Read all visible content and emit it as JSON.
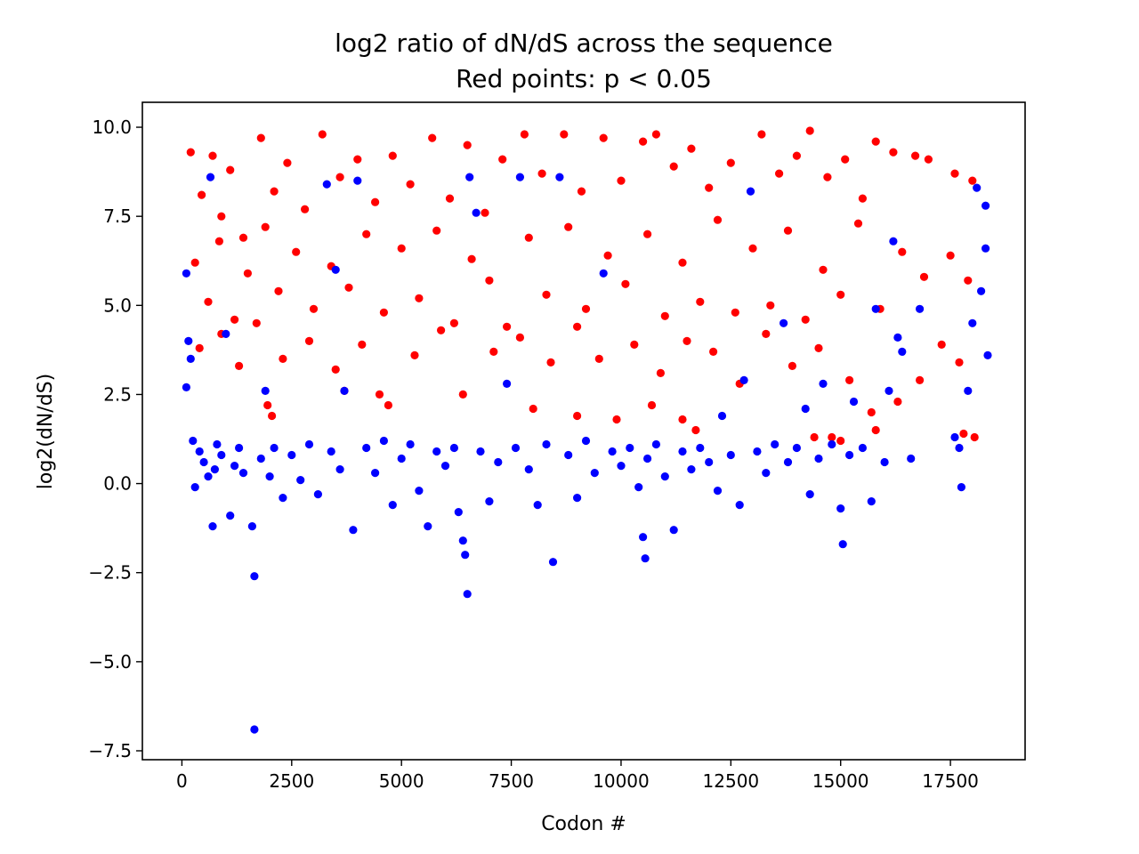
{
  "chart_data": {
    "type": "scatter",
    "title": "log2 ratio of dN/dS across the sequence",
    "subtitle": "Red points: p < 0.05",
    "xlabel": "Codon #",
    "ylabel": "log2(dN/dS)",
    "xlim": [
      -900,
      19200
    ],
    "ylim": [
      -7.75,
      10.7
    ],
    "xticks": [
      0,
      2500,
      5000,
      7500,
      10000,
      12500,
      15000,
      17500
    ],
    "xtick_labels": [
      "0",
      "2500",
      "5000",
      "7500",
      "10000",
      "12500",
      "15000",
      "17500"
    ],
    "yticks": [
      -7.5,
      -5.0,
      -2.5,
      0.0,
      2.5,
      5.0,
      7.5,
      10.0
    ],
    "ytick_labels": [
      "−7.5",
      "−5.0",
      "−2.5",
      "0.0",
      "2.5",
      "5.0",
      "7.5",
      "10.0"
    ],
    "grid": false,
    "series": [
      {
        "color": "#ff0000",
        "condition": "p < 0.05",
        "points": [
          [
            200,
            9.3
          ],
          [
            450,
            8.1
          ],
          [
            700,
            9.2
          ],
          [
            900,
            7.5
          ],
          [
            1100,
            8.8
          ],
          [
            1400,
            6.9
          ],
          [
            1800,
            9.7
          ],
          [
            2100,
            8.2
          ],
          [
            2400,
            9.0
          ],
          [
            2800,
            7.7
          ],
          [
            3200,
            9.8
          ],
          [
            3600,
            8.6
          ],
          [
            4000,
            9.1
          ],
          [
            4400,
            7.9
          ],
          [
            4800,
            9.2
          ],
          [
            5200,
            8.4
          ],
          [
            5700,
            9.7
          ],
          [
            6100,
            8.0
          ],
          [
            6500,
            9.5
          ],
          [
            6900,
            7.6
          ],
          [
            7300,
            9.1
          ],
          [
            7800,
            9.8
          ],
          [
            8200,
            8.7
          ],
          [
            8700,
            9.8
          ],
          [
            9100,
            8.2
          ],
          [
            9600,
            9.7
          ],
          [
            10000,
            8.5
          ],
          [
            10500,
            9.6
          ],
          [
            10800,
            9.8
          ],
          [
            11200,
            8.9
          ],
          [
            11600,
            9.4
          ],
          [
            12000,
            8.3
          ],
          [
            12500,
            9.0
          ],
          [
            13200,
            9.8
          ],
          [
            13600,
            8.7
          ],
          [
            14000,
            9.2
          ],
          [
            14300,
            9.9
          ],
          [
            14700,
            8.6
          ],
          [
            15100,
            9.1
          ],
          [
            15500,
            8.0
          ],
          [
            15800,
            9.6
          ],
          [
            16200,
            9.3
          ],
          [
            16700,
            9.2
          ],
          [
            17000,
            9.1
          ],
          [
            17600,
            8.7
          ],
          [
            18000,
            8.5
          ],
          [
            300,
            6.2
          ],
          [
            600,
            5.1
          ],
          [
            850,
            6.8
          ],
          [
            1200,
            4.6
          ],
          [
            1500,
            5.9
          ],
          [
            1900,
            7.2
          ],
          [
            2200,
            5.4
          ],
          [
            2600,
            6.5
          ],
          [
            3000,
            4.9
          ],
          [
            3400,
            6.1
          ],
          [
            3800,
            5.5
          ],
          [
            4200,
            7.0
          ],
          [
            4600,
            4.8
          ],
          [
            5000,
            6.6
          ],
          [
            5400,
            5.2
          ],
          [
            5800,
            7.1
          ],
          [
            6200,
            4.5
          ],
          [
            6600,
            6.3
          ],
          [
            7000,
            5.7
          ],
          [
            7400,
            4.4
          ],
          [
            7900,
            6.9
          ],
          [
            8300,
            5.3
          ],
          [
            8800,
            7.2
          ],
          [
            9200,
            4.9
          ],
          [
            9700,
            6.4
          ],
          [
            10100,
            5.6
          ],
          [
            10600,
            7.0
          ],
          [
            11000,
            4.7
          ],
          [
            11400,
            6.2
          ],
          [
            11800,
            5.1
          ],
          [
            12200,
            7.4
          ],
          [
            12600,
            4.8
          ],
          [
            13000,
            6.6
          ],
          [
            13400,
            5.0
          ],
          [
            13800,
            7.1
          ],
          [
            14200,
            4.6
          ],
          [
            14600,
            6.0
          ],
          [
            15000,
            5.3
          ],
          [
            15400,
            7.3
          ],
          [
            15900,
            4.9
          ],
          [
            16400,
            6.5
          ],
          [
            16900,
            5.8
          ],
          [
            17500,
            6.4
          ],
          [
            17900,
            5.7
          ],
          [
            400,
            3.8
          ],
          [
            900,
            4.2
          ],
          [
            1300,
            3.3
          ],
          [
            1700,
            4.5
          ],
          [
            2300,
            3.5
          ],
          [
            2900,
            4.0
          ],
          [
            3500,
            3.2
          ],
          [
            4100,
            3.9
          ],
          [
            4700,
            2.2
          ],
          [
            5300,
            3.6
          ],
          [
            5900,
            4.3
          ],
          [
            6400,
            2.5
          ],
          [
            7100,
            3.7
          ],
          [
            7700,
            4.1
          ],
          [
            8400,
            3.4
          ],
          [
            9000,
            4.4
          ],
          [
            9500,
            3.5
          ],
          [
            10300,
            3.9
          ],
          [
            10900,
            3.1
          ],
          [
            11500,
            4.0
          ],
          [
            12100,
            3.7
          ],
          [
            12700,
            2.8
          ],
          [
            13300,
            4.2
          ],
          [
            13900,
            3.3
          ],
          [
            14500,
            3.8
          ],
          [
            15200,
            2.9
          ],
          [
            15700,
            2.0
          ],
          [
            16300,
            2.3
          ],
          [
            16800,
            2.9
          ],
          [
            17300,
            3.9
          ],
          [
            17700,
            3.4
          ],
          [
            1950,
            2.2
          ],
          [
            2050,
            1.9
          ],
          [
            3700,
            2.6
          ],
          [
            4500,
            2.5
          ],
          [
            8000,
            2.1
          ],
          [
            9000,
            1.9
          ],
          [
            9900,
            1.8
          ],
          [
            10700,
            2.2
          ],
          [
            11400,
            1.8
          ],
          [
            11700,
            1.5
          ],
          [
            14400,
            1.3
          ],
          [
            14800,
            1.3
          ],
          [
            15000,
            1.2
          ],
          [
            15800,
            1.5
          ],
          [
            17800,
            1.4
          ],
          [
            18050,
            1.3
          ]
        ]
      },
      {
        "color": "#0000ff",
        "condition": "p ≥ 0.05",
        "points": [
          [
            100,
            5.9
          ],
          [
            150,
            4.0
          ],
          [
            100,
            2.7
          ],
          [
            200,
            3.5
          ],
          [
            250,
            1.2
          ],
          [
            300,
            -0.1
          ],
          [
            400,
            0.9
          ],
          [
            500,
            0.6
          ],
          [
            600,
            0.2
          ],
          [
            650,
            8.6
          ],
          [
            700,
            -1.2
          ],
          [
            750,
            0.4
          ],
          [
            800,
            1.1
          ],
          [
            900,
            0.8
          ],
          [
            1000,
            4.2
          ],
          [
            1100,
            -0.9
          ],
          [
            1200,
            0.5
          ],
          [
            1300,
            1.0
          ],
          [
            1400,
            0.3
          ],
          [
            1600,
            -1.2
          ],
          [
            1650,
            -2.6
          ],
          [
            1650,
            -6.9
          ],
          [
            1800,
            0.7
          ],
          [
            1900,
            2.6
          ],
          [
            2000,
            0.2
          ],
          [
            2100,
            1.0
          ],
          [
            2300,
            -0.4
          ],
          [
            2500,
            0.8
          ],
          [
            2700,
            0.1
          ],
          [
            2900,
            1.1
          ],
          [
            3100,
            -0.3
          ],
          [
            3300,
            8.4
          ],
          [
            3400,
            0.9
          ],
          [
            3500,
            6.0
          ],
          [
            3600,
            0.4
          ],
          [
            3700,
            2.6
          ],
          [
            3900,
            -1.3
          ],
          [
            4000,
            8.5
          ],
          [
            4200,
            1.0
          ],
          [
            4400,
            0.3
          ],
          [
            4600,
            1.2
          ],
          [
            4800,
            -0.6
          ],
          [
            5000,
            0.7
          ],
          [
            5200,
            1.1
          ],
          [
            5400,
            -0.2
          ],
          [
            5600,
            -1.2
          ],
          [
            5800,
            0.9
          ],
          [
            6000,
            0.5
          ],
          [
            6200,
            1.0
          ],
          [
            6300,
            -0.8
          ],
          [
            6400,
            -1.6
          ],
          [
            6450,
            -2.0
          ],
          [
            6500,
            -3.1
          ],
          [
            6550,
            8.6
          ],
          [
            6700,
            7.6
          ],
          [
            6800,
            0.9
          ],
          [
            7000,
            -0.5
          ],
          [
            7200,
            0.6
          ],
          [
            7400,
            2.8
          ],
          [
            7600,
            1.0
          ],
          [
            7700,
            8.6
          ],
          [
            7900,
            0.4
          ],
          [
            8100,
            -0.6
          ],
          [
            8300,
            1.1
          ],
          [
            8450,
            -2.2
          ],
          [
            8600,
            8.6
          ],
          [
            8800,
            0.8
          ],
          [
            9000,
            -0.4
          ],
          [
            9200,
            1.2
          ],
          [
            9400,
            0.3
          ],
          [
            9600,
            5.9
          ],
          [
            9800,
            0.9
          ],
          [
            10000,
            0.5
          ],
          [
            10200,
            1.0
          ],
          [
            10400,
            -0.1
          ],
          [
            10500,
            -1.5
          ],
          [
            10550,
            -2.1
          ],
          [
            10600,
            0.7
          ],
          [
            10800,
            1.1
          ],
          [
            11000,
            0.2
          ],
          [
            11200,
            -1.3
          ],
          [
            11400,
            0.9
          ],
          [
            11600,
            0.4
          ],
          [
            11800,
            1.0
          ],
          [
            12000,
            0.6
          ],
          [
            12200,
            -0.2
          ],
          [
            12300,
            1.9
          ],
          [
            12500,
            0.8
          ],
          [
            12700,
            -0.6
          ],
          [
            12800,
            2.9
          ],
          [
            12950,
            8.2
          ],
          [
            13100,
            0.9
          ],
          [
            13300,
            0.3
          ],
          [
            13500,
            1.1
          ],
          [
            13700,
            4.5
          ],
          [
            13800,
            0.6
          ],
          [
            14000,
            1.0
          ],
          [
            14200,
            2.1
          ],
          [
            14300,
            -0.3
          ],
          [
            14500,
            0.7
          ],
          [
            14600,
            2.8
          ],
          [
            14800,
            1.1
          ],
          [
            15000,
            -0.7
          ],
          [
            15050,
            -1.7
          ],
          [
            15200,
            0.8
          ],
          [
            15300,
            2.3
          ],
          [
            15500,
            1.0
          ],
          [
            15700,
            -0.5
          ],
          [
            15800,
            4.9
          ],
          [
            16000,
            0.6
          ],
          [
            16100,
            2.6
          ],
          [
            16200,
            6.8
          ],
          [
            16300,
            4.1
          ],
          [
            16400,
            3.7
          ],
          [
            16600,
            0.7
          ],
          [
            16800,
            4.9
          ],
          [
            17600,
            1.3
          ],
          [
            17700,
            1.0
          ],
          [
            17750,
            -0.1
          ],
          [
            17900,
            2.6
          ],
          [
            18000,
            4.5
          ],
          [
            18100,
            8.3
          ],
          [
            18200,
            5.4
          ],
          [
            18300,
            7.8
          ],
          [
            18350,
            3.6
          ],
          [
            18300,
            6.6
          ]
        ]
      }
    ]
  }
}
